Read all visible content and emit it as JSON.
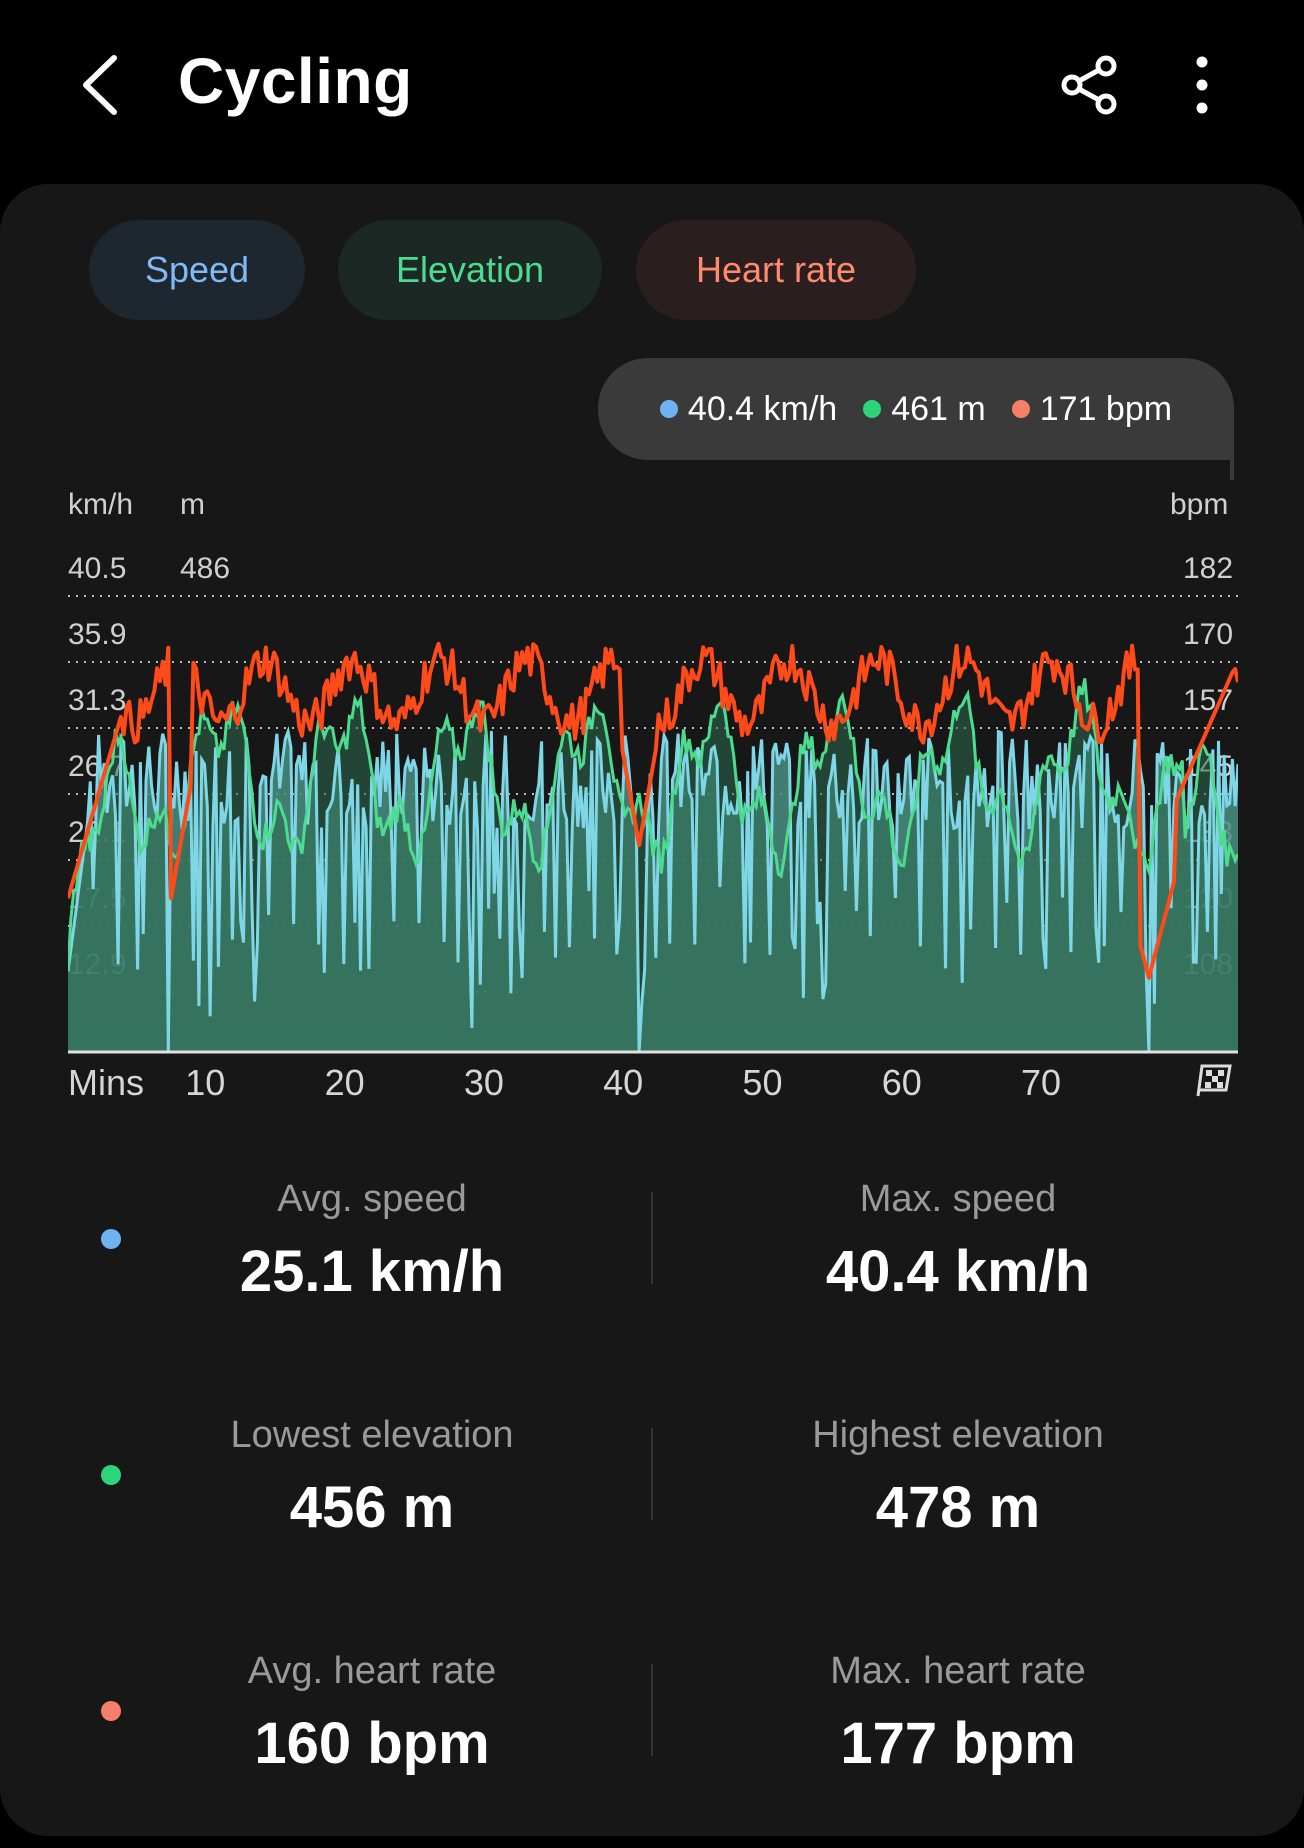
{
  "header": {
    "title": "Cycling"
  },
  "tabs": [
    {
      "label": "Speed",
      "color": "#7fbaf6"
    },
    {
      "label": "Elevation",
      "color": "#4ddc8f"
    },
    {
      "label": "Heart rate",
      "color": "#ff8a6d"
    }
  ],
  "readout": {
    "speed": "40.4 km/h",
    "elevation": "461 m",
    "heart_rate": "171 bpm"
  },
  "chart_data": {
    "type": "line",
    "left_unit_speed": "km/h",
    "left_unit_elev": "m",
    "right_unit": "bpm",
    "speed_ticks": [
      "40.5",
      "35.9",
      "31.3",
      "26.7",
      "22.1",
      "17.5",
      "12.9"
    ],
    "elev_top_tick": "486",
    "hr_ticks": [
      "182",
      "170",
      "157",
      "145",
      "133",
      "120",
      "108"
    ],
    "x_label": "Mins",
    "x_ticks": [
      "10",
      "20",
      "30",
      "40",
      "50",
      "60",
      "70"
    ],
    "speed_range": [
      8.3,
      40.5
    ],
    "hr_range": [
      96,
      182
    ],
    "elev_range": [
      440,
      486
    ],
    "x_range_mins": [
      0,
      84
    ],
    "series": [
      {
        "name": "Speed",
        "color": "#7fd6e6"
      },
      {
        "name": "Elevation",
        "color": "#4ddc8f"
      },
      {
        "name": "Heart rate",
        "color": "#ff5a2a"
      }
    ]
  },
  "stats": [
    {
      "label": "Avg. speed",
      "value": "25.1 km/h",
      "color": "#6fb2f2"
    },
    {
      "label": "Max. speed",
      "value": "40.4 km/h"
    },
    {
      "label": "Lowest elevation",
      "value": "456 m",
      "color": "#2ed47a"
    },
    {
      "label": "Highest elevation",
      "value": "478 m"
    },
    {
      "label": "Avg. heart rate",
      "value": "160 bpm",
      "color": "#f4806a"
    },
    {
      "label": "Max. heart rate",
      "value": "177 bpm"
    }
  ]
}
